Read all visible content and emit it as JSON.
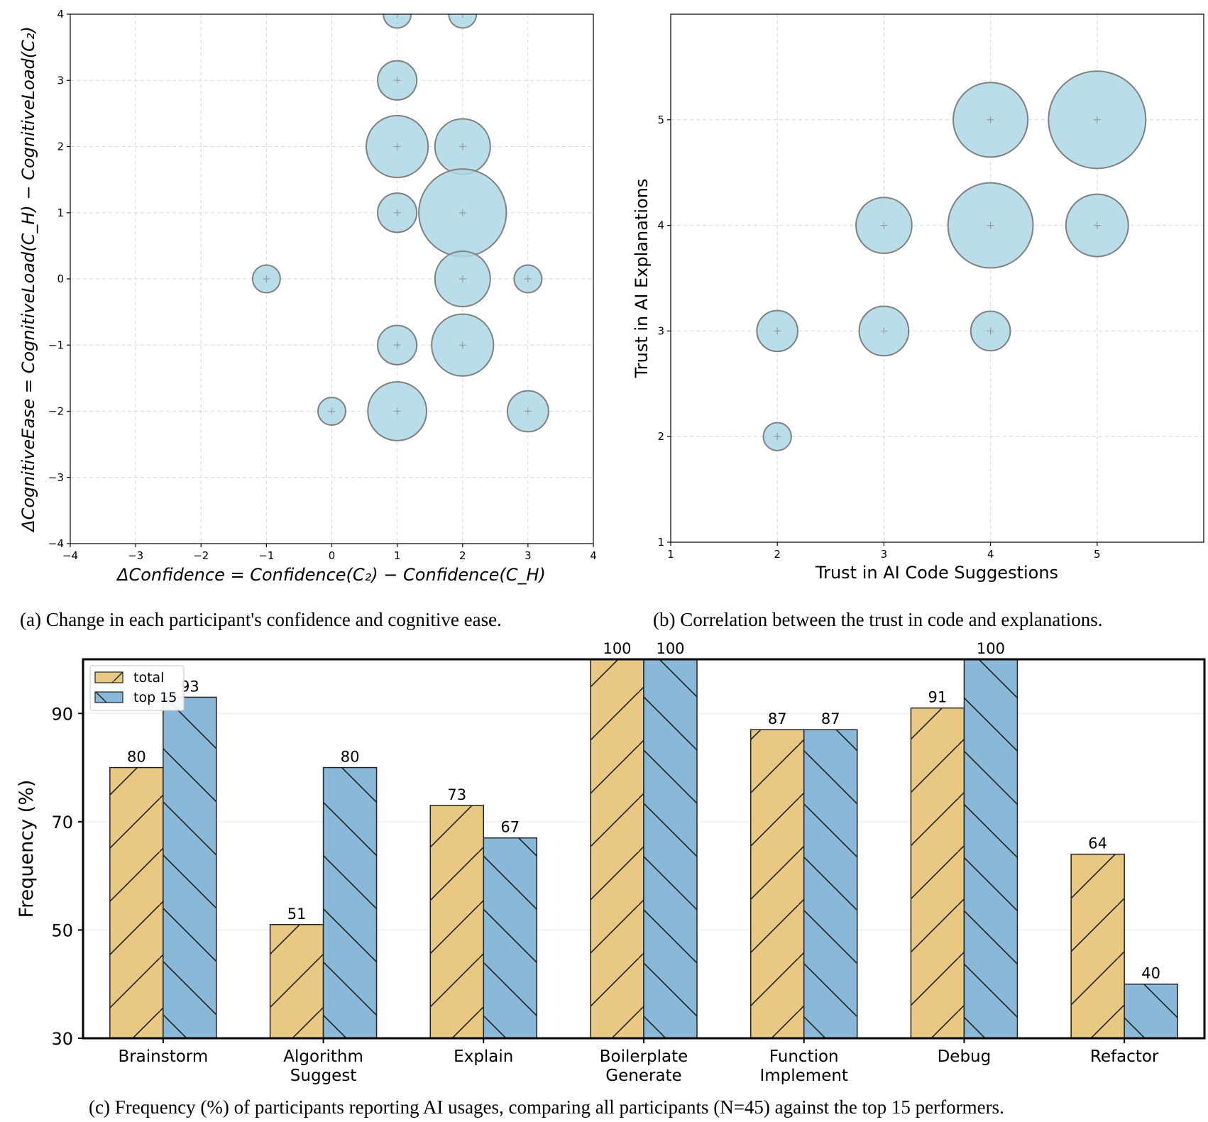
{
  "chart_data": [
    {
      "id": "a",
      "type": "scatter",
      "subtype": "bubble",
      "xlabel": "ΔConfidence = Confidence(C₂) − Confidence(C_H)",
      "ylabel": "ΔCognitiveEase = CognitiveLoad(C_H) − CognitiveLoad(C₂)",
      "xlim": [
        -4,
        4
      ],
      "ylim": [
        -4,
        4
      ],
      "xticks": [
        "−4",
        "−3",
        "−2",
        "−1",
        "0",
        "1",
        "2",
        "3",
        "4"
      ],
      "yticks": [
        "−4",
        "−3",
        "−2",
        "−1",
        "0",
        "1",
        "2",
        "3",
        "4"
      ],
      "grid": true,
      "points": [
        {
          "x": 1,
          "y": 4,
          "size": 1
        },
        {
          "x": 2,
          "y": 4,
          "size": 1
        },
        {
          "x": 1,
          "y": 3,
          "size": 2
        },
        {
          "x": 1,
          "y": 2,
          "size": 5
        },
        {
          "x": 2,
          "y": 2,
          "size": 4
        },
        {
          "x": 1,
          "y": 1,
          "size": 2
        },
        {
          "x": 2,
          "y": 1,
          "size": 10
        },
        {
          "x": -1,
          "y": 0,
          "size": 1
        },
        {
          "x": 2,
          "y": 0,
          "size": 4
        },
        {
          "x": 3,
          "y": 0,
          "size": 1
        },
        {
          "x": 1,
          "y": -1,
          "size": 2
        },
        {
          "x": 2,
          "y": -1,
          "size": 5
        },
        {
          "x": 0,
          "y": -2,
          "size": 1
        },
        {
          "x": 1,
          "y": -2,
          "size": 4.5
        },
        {
          "x": 3,
          "y": -2,
          "size": 2.2
        }
      ],
      "caption": "(a) Change in each participant's confidence and cognitive ease."
    },
    {
      "id": "b",
      "type": "scatter",
      "subtype": "bubble",
      "xlabel": "Trust in AI Code Suggestions",
      "ylabel": "Trust in AI Explanations",
      "xlim": [
        1,
        6
      ],
      "ylim": [
        1,
        6
      ],
      "xticks": [
        "1",
        "2",
        "3",
        "4",
        "5"
      ],
      "yticks": [
        "1",
        "2",
        "3",
        "4",
        "5"
      ],
      "grid": true,
      "points": [
        {
          "x": 4,
          "y": 5,
          "size": 5
        },
        {
          "x": 5,
          "y": 5,
          "size": 8.5
        },
        {
          "x": 3,
          "y": 4,
          "size": 2.8
        },
        {
          "x": 4,
          "y": 4,
          "size": 6.5
        },
        {
          "x": 5,
          "y": 4,
          "size": 3.5
        },
        {
          "x": 2,
          "y": 3,
          "size": 1.5
        },
        {
          "x": 3,
          "y": 3,
          "size": 2.2
        },
        {
          "x": 4,
          "y": 3,
          "size": 1.4
        },
        {
          "x": 2,
          "y": 2,
          "size": 0.7
        }
      ],
      "caption": "(b) Correlation between the trust in code and explanations."
    },
    {
      "id": "c",
      "type": "bar",
      "ylabel": "Frequency (%)",
      "ylim": [
        30,
        100
      ],
      "yticks": [
        "30",
        "50",
        "70",
        "90"
      ],
      "categories": [
        "Brainstorm",
        "Algorithm\nSuggest",
        "Explain",
        "Boilerplate\nGenerate",
        "Function\nImplement",
        "Debug",
        "Refactor"
      ],
      "series": [
        {
          "name": "total",
          "values": [
            80,
            51,
            73,
            100,
            87,
            91,
            64
          ],
          "color": "#e8c882",
          "hatch": "/"
        },
        {
          "name": "top 15",
          "values": [
            93,
            80,
            67,
            100,
            87,
            100,
            40
          ],
          "color": "#89b8d8",
          "hatch": "\\"
        }
      ],
      "legend": "top-left",
      "caption": "(c) Frequency (%) of participants reporting AI usages, comparing all participants (N=45) against the top 15 performers."
    }
  ]
}
